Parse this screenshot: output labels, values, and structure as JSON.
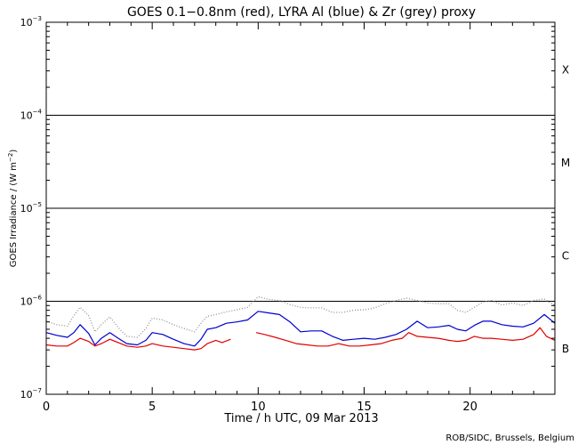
{
  "chart_data": {
    "type": "line",
    "title": "GOES 0.1−0.8nm (red), LYRA Al (blue) & Zr (grey) proxy",
    "xlabel": "Time / h UTC, 09 Mar 2013",
    "ylabel_main": "GOES Irradiance / (W m",
    "ylabel_sup": "−2",
    "ylabel_close": ")",
    "credit": "ROB/SIDC, Brussels, Belgium",
    "xlim": [
      0,
      24
    ],
    "ylim": [
      1e-07,
      0.001
    ],
    "yscale": "log",
    "x_ticks": [
      {
        "value": 0,
        "label": "0"
      },
      {
        "value": 5,
        "label": "5"
      },
      {
        "value": 10,
        "label": "10"
      },
      {
        "value": 15,
        "label": "15"
      },
      {
        "value": 20,
        "label": "20"
      }
    ],
    "y_ticks": [
      {
        "exp": -7,
        "base": "10",
        "sup": "−7"
      },
      {
        "exp": -6,
        "base": "10",
        "sup": "−6"
      },
      {
        "exp": -5,
        "base": "10",
        "sup": "−5"
      },
      {
        "exp": -4,
        "base": "10",
        "sup": "−4"
      },
      {
        "exp": -3,
        "base": "10",
        "sup": "−3"
      }
    ],
    "flare_thresholds": [
      1e-06,
      1e-05,
      0.0001
    ],
    "flare_classes": [
      {
        "label": "X",
        "exp": -3.5
      },
      {
        "label": "M",
        "exp": -4.5
      },
      {
        "label": "C",
        "exp": -5.5
      },
      {
        "label": "B",
        "exp": -6.5
      }
    ],
    "series": [
      {
        "color": "#e00000",
        "style": "line",
        "x": [
          0.0,
          0.5,
          1.0,
          1.3,
          1.6,
          2.0,
          2.3,
          2.6,
          3.0,
          3.4,
          3.8,
          4.3,
          4.7,
          5.0,
          5.5,
          6.0,
          6.5,
          7.0,
          7.3,
          7.6,
          8.0,
          8.3,
          8.7,
          null,
          9.9,
          10.3,
          10.8,
          11.3,
          11.8,
          12.3,
          12.8,
          13.3,
          13.8,
          14.3,
          14.8,
          15.3,
          15.8,
          16.3,
          16.8,
          17.1,
          17.5,
          18.0,
          18.5,
          19.0,
          19.4,
          19.8,
          20.2,
          20.6,
          21.0,
          21.5,
          22.0,
          22.5,
          23.0,
          23.3,
          23.6,
          24.0
        ],
        "y": [
          3.4e-07,
          3.3e-07,
          3.3e-07,
          3.6e-07,
          4e-07,
          3.7e-07,
          3.3e-07,
          3.5e-07,
          3.9e-07,
          3.6e-07,
          3.3e-07,
          3.2e-07,
          3.3e-07,
          3.5e-07,
          3.3e-07,
          3.2e-07,
          3.1e-07,
          3e-07,
          3.1e-07,
          3.5e-07,
          3.8e-07,
          3.6e-07,
          3.9e-07,
          null,
          4.6e-07,
          4.4e-07,
          4.1e-07,
          3.8e-07,
          3.5e-07,
          3.4e-07,
          3.3e-07,
          3.3e-07,
          3.5e-07,
          3.3e-07,
          3.3e-07,
          3.4e-07,
          3.5e-07,
          3.8e-07,
          4e-07,
          4.6e-07,
          4.2e-07,
          4.1e-07,
          4e-07,
          3.8e-07,
          3.7e-07,
          3.8e-07,
          4.2e-07,
          4e-07,
          4e-07,
          3.9e-07,
          3.8e-07,
          3.9e-07,
          4.4e-07,
          5.2e-07,
          4.2e-07,
          3.8e-07
        ]
      },
      {
        "color": "#0000d0",
        "style": "line",
        "x": [
          0.0,
          0.5,
          1.0,
          1.3,
          1.6,
          2.0,
          2.3,
          2.6,
          3.0,
          3.4,
          3.8,
          4.3,
          4.7,
          5.0,
          5.5,
          6.0,
          6.5,
          7.0,
          7.3,
          7.6,
          8.0,
          8.5,
          9.0,
          9.5,
          10.0,
          10.5,
          11.0,
          11.5,
          12.0,
          12.5,
          13.0,
          13.5,
          14.0,
          14.5,
          15.0,
          15.5,
          16.0,
          16.5,
          17.0,
          17.5,
          18.0,
          18.5,
          19.0,
          19.4,
          19.8,
          20.2,
          20.6,
          21.0,
          21.5,
          22.0,
          22.5,
          23.0,
          23.5,
          24.0
        ],
        "y": [
          4.6e-07,
          4.3e-07,
          4.1e-07,
          4.6e-07,
          5.6e-07,
          4.5e-07,
          3.4e-07,
          4e-07,
          4.6e-07,
          4e-07,
          3.5e-07,
          3.4e-07,
          3.8e-07,
          4.6e-07,
          4.4e-07,
          3.9e-07,
          3.5e-07,
          3.3e-07,
          3.9e-07,
          5e-07,
          5.2e-07,
          5.8e-07,
          6e-07,
          6.3e-07,
          7.8e-07,
          7.5e-07,
          7.2e-07,
          6e-07,
          4.7e-07,
          4.8e-07,
          4.8e-07,
          4.2e-07,
          3.8e-07,
          3.9e-07,
          4e-07,
          3.9e-07,
          4.1e-07,
          4.4e-07,
          5e-07,
          6.1e-07,
          5.2e-07,
          5.3e-07,
          5.5e-07,
          5e-07,
          4.8e-07,
          5.5e-07,
          6.1e-07,
          6.1e-07,
          5.6e-07,
          5.4e-07,
          5.3e-07,
          5.8e-07,
          7.2e-07,
          5.8e-07
        ]
      },
      {
        "color": "#909090",
        "style": "dotted",
        "x": [
          0.0,
          0.5,
          1.0,
          1.3,
          1.6,
          2.0,
          2.3,
          2.6,
          3.0,
          3.4,
          3.8,
          4.3,
          4.7,
          5.0,
          5.5,
          6.0,
          6.5,
          7.0,
          7.3,
          7.6,
          8.0,
          8.5,
          9.0,
          9.5,
          10.0,
          10.5,
          11.0,
          11.5,
          12.0,
          12.5,
          13.0,
          13.5,
          14.0,
          14.5,
          15.0,
          15.5,
          16.0,
          16.5,
          17.0,
          17.5,
          18.0,
          18.5,
          19.0,
          19.4,
          19.8,
          20.2,
          20.6,
          21.0,
          21.5,
          22.0,
          22.5,
          23.0,
          23.5,
          24.0
        ],
        "y": [
          6.1e-07,
          5.6e-07,
          5.4e-07,
          7e-07,
          8.6e-07,
          7e-07,
          4.7e-07,
          5.6e-07,
          6.8e-07,
          5.2e-07,
          4.2e-07,
          4.1e-07,
          5.1e-07,
          6.6e-07,
          6.3e-07,
          5.6e-07,
          5.1e-07,
          4.7e-07,
          5.8e-07,
          6.9e-07,
          7.2e-07,
          7.7e-07,
          8.1e-07,
          8.6e-07,
          1.12e-06,
          1.05e-06,
          1.02e-06,
          9.2e-07,
          8.6e-07,
          8.5e-07,
          8.5e-07,
          7.6e-07,
          7.6e-07,
          8e-07,
          8.1e-07,
          8.5e-07,
          9.4e-07,
          1.02e-06,
          1.08e-06,
          1.02e-06,
          9.6e-07,
          9.4e-07,
          9.4e-07,
          8e-07,
          7.6e-07,
          8.6e-07,
          9.8e-07,
          1.02e-06,
          9.1e-07,
          9.6e-07,
          9e-07,
          1.02e-06,
          1.06e-06,
          9e-07
        ]
      }
    ]
  }
}
